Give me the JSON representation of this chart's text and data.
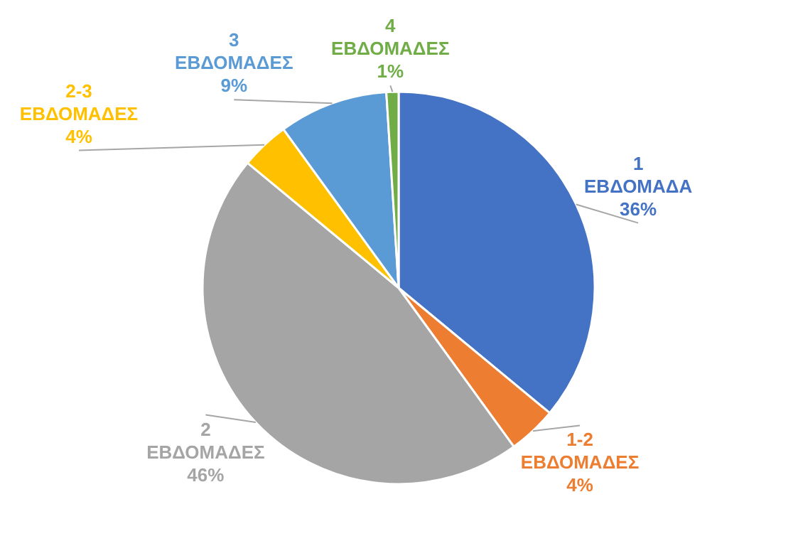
{
  "chart_data": {
    "type": "pie",
    "categories": [
      "1 ΕΒΔΟΜΑΔΑ",
      "1-2 ΕΒΔΟΜΑΔΕΣ",
      "2 ΕΒΔΟΜΑΔΕΣ",
      "2-3 ΕΒΔΟΜΑΔΕΣ",
      "3 ΕΒΔΟΜΑΔΕΣ",
      "4 ΕΒΔΟΜΑΔΕΣ"
    ],
    "values": [
      36,
      4,
      46,
      4,
      9,
      1
    ],
    "colors": [
      "#4472c4",
      "#ed7d31",
      "#a5a5a5",
      "#ffc000",
      "#5b9bd5",
      "#70ad47"
    ],
    "value_labels": [
      "36%",
      "4%",
      "46%",
      "4%",
      "9%",
      "1%"
    ]
  }
}
